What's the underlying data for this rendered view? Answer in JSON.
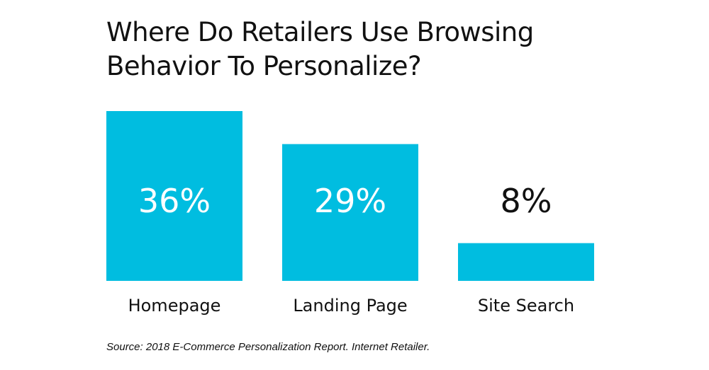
{
  "chart_data": {
    "type": "bar",
    "title_lines": [
      "Where Do Retailers Use Browsing",
      "Behavior To Personalize?"
    ],
    "categories": [
      "Homepage",
      "Landing Page",
      "Site Search"
    ],
    "values": [
      36,
      29,
      8
    ],
    "value_labels": [
      "36%",
      "29%",
      "8%"
    ],
    "unit": "%",
    "xlabel": "",
    "ylabel": "",
    "ylim": [
      0,
      36
    ],
    "grid": false,
    "legend": "none",
    "bar_color": "#00bde0",
    "label_color_inside": "#ffffff",
    "label_color_outside": "#111111"
  },
  "source": "Source: 2018 E-Commerce Personalization Report. Internet Retailer."
}
